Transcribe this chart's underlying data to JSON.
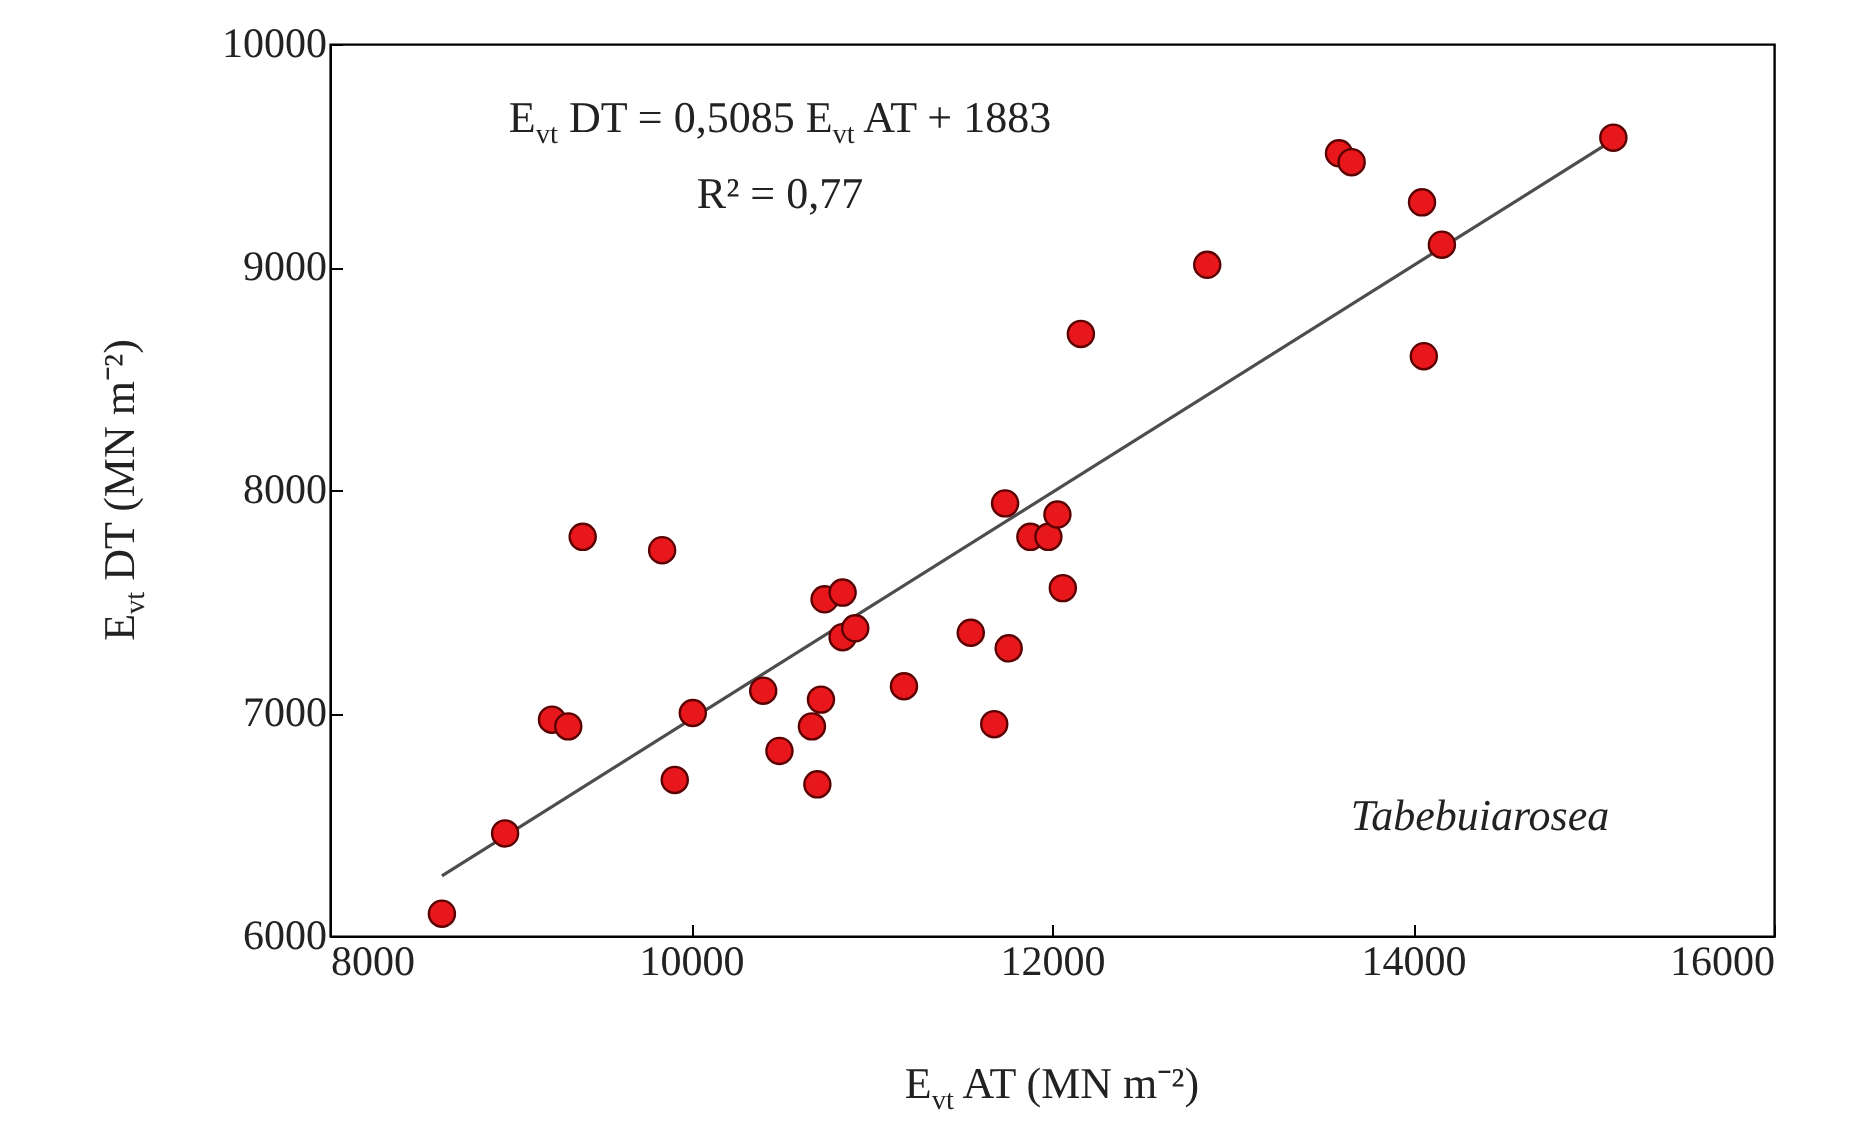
{
  "chart_data": {
    "type": "scatter",
    "xlabel": "E$_{vt}$  AT   (MN m⁻²)",
    "ylabel": "E$_{vt}$  DT   (MN m⁻²)",
    "annotations": [
      "E$_{vt}$ DT = 0,5085 E$_{vt}$ AT + 1883",
      "R² = 0,77",
      "Tabebuiarosea"
    ],
    "xlim": [
      8000,
      16000
    ],
    "xticks": [
      8000,
      10000,
      12000,
      14000,
      16000
    ],
    "ylim": [
      6000,
      10000
    ],
    "yticks": [
      6000,
      7000,
      8000,
      9000,
      10000
    ],
    "grid": false,
    "series": [
      {
        "marker": "circle",
        "color": "#e8171c",
        "x": [
          8620,
          8970,
          9400,
          9230,
          9320,
          9840,
          9910,
          10010,
          10400,
          10490,
          10670,
          10720,
          10700,
          10740,
          10840,
          10840,
          10910,
          11180,
          11550,
          11760,
          11680,
          11740,
          11880,
          11980,
          12030,
          12060,
          12160,
          12860,
          13590,
          13660,
          14050,
          14160,
          14060,
          15110
        ],
        "values": [
          6100,
          6460,
          7790,
          6970,
          6940,
          7730,
          6700,
          7000,
          7100,
          6830,
          6940,
          7060,
          6680,
          7510,
          7540,
          7340,
          7380,
          7120,
          7360,
          7290,
          6950,
          7940,
          7790,
          7790,
          7890,
          7560,
          8700,
          9010,
          9510,
          9470,
          9290,
          9100,
          8600,
          9580
        ]
      },
      {
        "type": "line",
        "marker": "none",
        "color": "#4d4d4d",
        "x": [
          8620,
          15110
        ],
        "values": [
          6270,
          9570
        ]
      }
    ]
  }
}
